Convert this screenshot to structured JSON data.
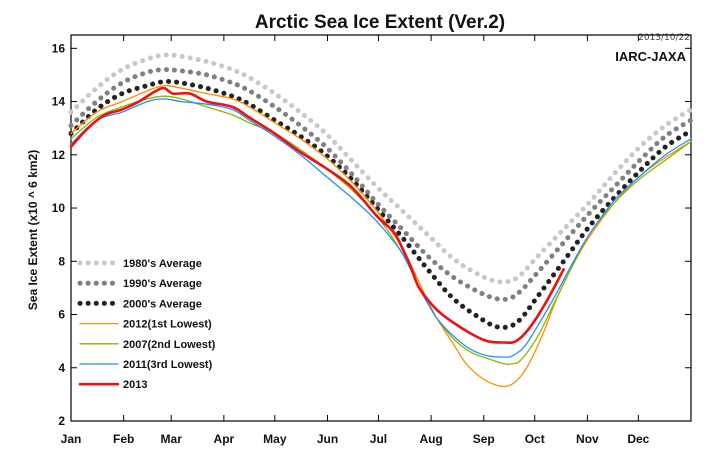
{
  "chart_data": {
    "type": "line",
    "title": "Arctic Sea Ice Extent (Ver.2)",
    "date_stamp": "2013/10/22",
    "organization": "IARC-JAXA",
    "ylabel": "Sea Ice Extent (x10 ^ 6 km2)",
    "xlabel": "",
    "x_months": [
      "Jan",
      "Feb",
      "Mar",
      "Apr",
      "May",
      "Jun",
      "Jul",
      "Aug",
      "Sep",
      "Oct",
      "Nov",
      "Dec"
    ],
    "xlim": [
      0,
      365
    ],
    "ylim": [
      2,
      16.5
    ],
    "y_ticks": [
      2,
      4,
      6,
      8,
      10,
      12,
      14,
      16
    ],
    "grid": false,
    "legend_position": "bottom-left",
    "series": [
      {
        "name": "1980's Average",
        "color": "#c8c8c8",
        "style": "dotted",
        "points": [
          [
            0,
            13.6
          ],
          [
            15,
            14.5
          ],
          [
            30,
            15.2
          ],
          [
            45,
            15.6
          ],
          [
            55,
            15.75
          ],
          [
            65,
            15.7
          ],
          [
            80,
            15.5
          ],
          [
            95,
            15.2
          ],
          [
            105,
            14.9
          ],
          [
            120,
            14.3
          ],
          [
            135,
            13.6
          ],
          [
            150,
            12.8
          ],
          [
            165,
            11.8
          ],
          [
            180,
            10.8
          ],
          [
            195,
            9.9
          ],
          [
            210,
            9.0
          ],
          [
            225,
            8.1
          ],
          [
            240,
            7.5
          ],
          [
            250,
            7.25
          ],
          [
            258,
            7.25
          ],
          [
            265,
            7.5
          ],
          [
            275,
            8.2
          ],
          [
            290,
            9.2
          ],
          [
            305,
            10.2
          ],
          [
            320,
            11.3
          ],
          [
            335,
            12.3
          ],
          [
            350,
            13.1
          ],
          [
            365,
            13.7
          ]
        ]
      },
      {
        "name": "1990's Average",
        "color": "#808080",
        "style": "dotted",
        "points": [
          [
            0,
            13.1
          ],
          [
            15,
            14.0
          ],
          [
            30,
            14.7
          ],
          [
            45,
            15.1
          ],
          [
            55,
            15.2
          ],
          [
            65,
            15.15
          ],
          [
            80,
            15.0
          ],
          [
            95,
            14.7
          ],
          [
            105,
            14.4
          ],
          [
            120,
            13.8
          ],
          [
            135,
            13.1
          ],
          [
            150,
            12.3
          ],
          [
            165,
            11.3
          ],
          [
            180,
            10.2
          ],
          [
            195,
            9.2
          ],
          [
            210,
            8.2
          ],
          [
            225,
            7.4
          ],
          [
            240,
            6.85
          ],
          [
            250,
            6.6
          ],
          [
            258,
            6.6
          ],
          [
            265,
            6.9
          ],
          [
            275,
            7.6
          ],
          [
            290,
            8.7
          ],
          [
            305,
            9.8
          ],
          [
            320,
            10.8
          ],
          [
            335,
            11.8
          ],
          [
            350,
            12.7
          ],
          [
            365,
            13.3
          ]
        ]
      },
      {
        "name": "2000's Average",
        "color": "#222222",
        "style": "dotted",
        "points": [
          [
            0,
            12.8
          ],
          [
            15,
            13.7
          ],
          [
            30,
            14.3
          ],
          [
            45,
            14.6
          ],
          [
            55,
            14.75
          ],
          [
            65,
            14.7
          ],
          [
            80,
            14.5
          ],
          [
            95,
            14.2
          ],
          [
            105,
            13.9
          ],
          [
            120,
            13.3
          ],
          [
            135,
            12.7
          ],
          [
            150,
            12.0
          ],
          [
            165,
            11.1
          ],
          [
            180,
            10.0
          ],
          [
            195,
            8.9
          ],
          [
            210,
            7.7
          ],
          [
            225,
            6.6
          ],
          [
            240,
            5.9
          ],
          [
            250,
            5.55
          ],
          [
            258,
            5.55
          ],
          [
            265,
            5.85
          ],
          [
            275,
            6.7
          ],
          [
            290,
            8.0
          ],
          [
            305,
            9.3
          ],
          [
            320,
            10.4
          ],
          [
            335,
            11.4
          ],
          [
            350,
            12.3
          ],
          [
            365,
            12.9
          ]
        ]
      },
      {
        "name": "2012(1st Lowest)",
        "color": "#ff8c00",
        "style": "solid",
        "points": [
          [
            0,
            12.8
          ],
          [
            15,
            13.6
          ],
          [
            30,
            14.0
          ],
          [
            45,
            14.4
          ],
          [
            55,
            14.6
          ],
          [
            65,
            14.5
          ],
          [
            80,
            14.3
          ],
          [
            95,
            14.1
          ],
          [
            105,
            13.8
          ],
          [
            120,
            13.2
          ],
          [
            135,
            12.6
          ],
          [
            150,
            11.9
          ],
          [
            165,
            11.0
          ],
          [
            180,
            9.9
          ],
          [
            195,
            8.5
          ],
          [
            205,
            7.2
          ],
          [
            215,
            5.9
          ],
          [
            225,
            4.9
          ],
          [
            232,
            4.2
          ],
          [
            240,
            3.7
          ],
          [
            248,
            3.4
          ],
          [
            256,
            3.3
          ],
          [
            263,
            3.55
          ],
          [
            270,
            4.2
          ],
          [
            278,
            5.3
          ],
          [
            286,
            6.6
          ],
          [
            295,
            7.8
          ],
          [
            305,
            8.9
          ],
          [
            320,
            10.2
          ],
          [
            335,
            11.2
          ],
          [
            350,
            11.9
          ],
          [
            365,
            12.5
          ]
        ]
      },
      {
        "name": "2007(2nd Lowest)",
        "color": "#8db600",
        "style": "solid",
        "points": [
          [
            0,
            12.6
          ],
          [
            15,
            13.4
          ],
          [
            30,
            13.8
          ],
          [
            45,
            14.1
          ],
          [
            55,
            14.2
          ],
          [
            65,
            14.1
          ],
          [
            80,
            13.8
          ],
          [
            95,
            13.5
          ],
          [
            105,
            13.2
          ],
          [
            120,
            12.8
          ],
          [
            135,
            12.2
          ],
          [
            150,
            11.5
          ],
          [
            165,
            10.7
          ],
          [
            180,
            9.7
          ],
          [
            195,
            8.3
          ],
          [
            205,
            7.0
          ],
          [
            215,
            5.9
          ],
          [
            225,
            5.1
          ],
          [
            235,
            4.6
          ],
          [
            245,
            4.35
          ],
          [
            255,
            4.15
          ],
          [
            260,
            4.15
          ],
          [
            265,
            4.3
          ],
          [
            275,
            5.2
          ],
          [
            285,
            6.5
          ],
          [
            295,
            7.8
          ],
          [
            305,
            9.0
          ],
          [
            320,
            10.2
          ],
          [
            335,
            11.1
          ],
          [
            350,
            11.8
          ],
          [
            365,
            12.5
          ]
        ]
      },
      {
        "name": "2011(3rd Lowest)",
        "color": "#1e90ff",
        "style": "solid",
        "points": [
          [
            0,
            12.4
          ],
          [
            15,
            13.3
          ],
          [
            30,
            13.6
          ],
          [
            45,
            14.0
          ],
          [
            55,
            14.1
          ],
          [
            65,
            14.0
          ],
          [
            80,
            13.9
          ],
          [
            95,
            13.7
          ],
          [
            105,
            13.3
          ],
          [
            120,
            12.7
          ],
          [
            135,
            12.0
          ],
          [
            150,
            11.2
          ],
          [
            165,
            10.4
          ],
          [
            180,
            9.5
          ],
          [
            195,
            8.3
          ],
          [
            205,
            7.0
          ],
          [
            215,
            5.9
          ],
          [
            225,
            5.2
          ],
          [
            235,
            4.7
          ],
          [
            245,
            4.45
          ],
          [
            255,
            4.4
          ],
          [
            260,
            4.45
          ],
          [
            267,
            4.8
          ],
          [
            275,
            5.6
          ],
          [
            285,
            6.7
          ],
          [
            295,
            7.9
          ],
          [
            305,
            9.0
          ],
          [
            320,
            10.3
          ],
          [
            335,
            11.2
          ],
          [
            350,
            12.0
          ],
          [
            365,
            12.6
          ]
        ]
      },
      {
        "name": "2013",
        "color": "#ee1111",
        "style": "solid",
        "points": [
          [
            0,
            12.3
          ],
          [
            10,
            13.0
          ],
          [
            20,
            13.5
          ],
          [
            30,
            13.7
          ],
          [
            40,
            14.0
          ],
          [
            50,
            14.4
          ],
          [
            55,
            14.5
          ],
          [
            60,
            14.3
          ],
          [
            70,
            14.3
          ],
          [
            80,
            14.0
          ],
          [
            95,
            13.8
          ],
          [
            105,
            13.4
          ],
          [
            120,
            12.8
          ],
          [
            135,
            12.1
          ],
          [
            150,
            11.5
          ],
          [
            165,
            10.8
          ],
          [
            180,
            9.7
          ],
          [
            190,
            9.1
          ],
          [
            195,
            8.5
          ],
          [
            200,
            7.8
          ],
          [
            205,
            7.0
          ],
          [
            215,
            6.2
          ],
          [
            225,
            5.7
          ],
          [
            235,
            5.3
          ],
          [
            245,
            5.0
          ],
          [
            255,
            4.95
          ],
          [
            262,
            5.0
          ],
          [
            270,
            5.5
          ],
          [
            280,
            6.5
          ],
          [
            290,
            7.7
          ]
        ]
      }
    ]
  }
}
